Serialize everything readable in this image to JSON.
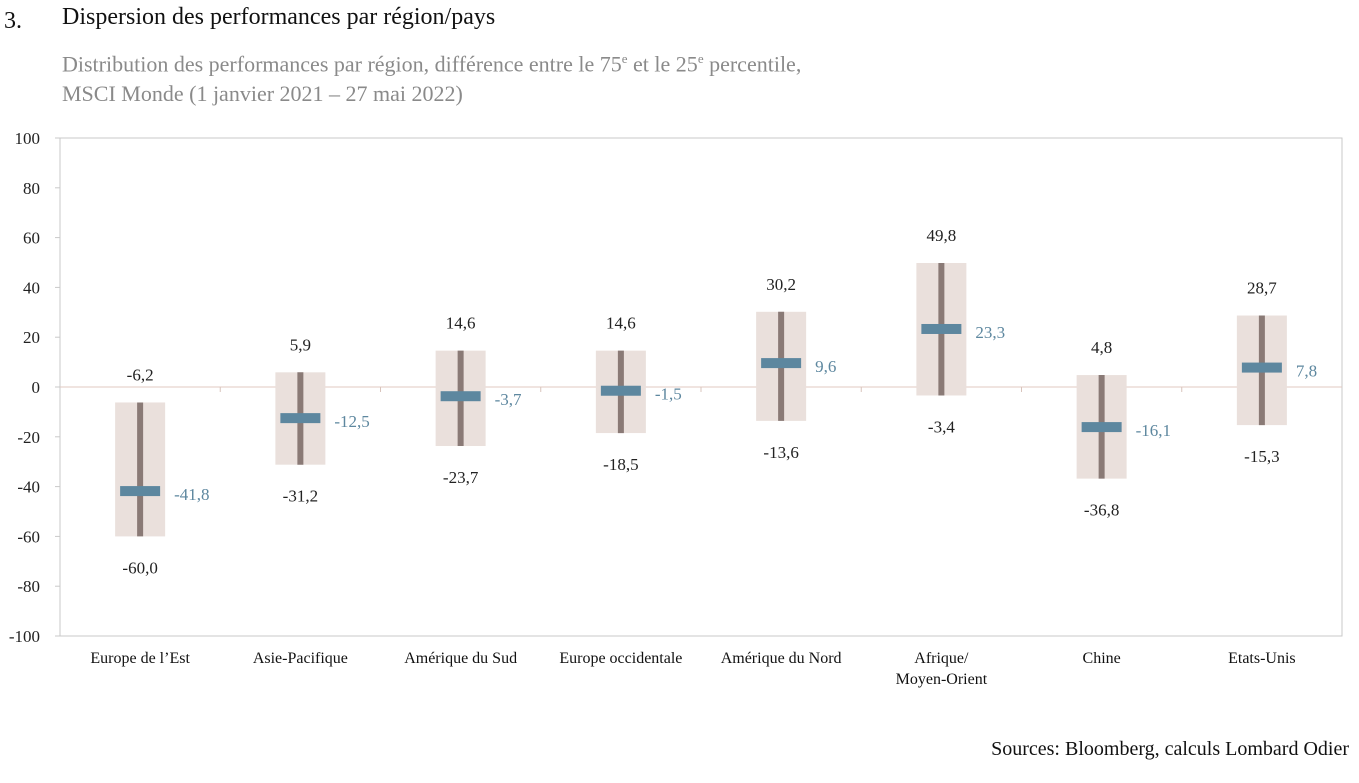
{
  "figure": {
    "number": "3.",
    "title": "Dispersion des performances par région/pays",
    "subtitle": {
      "part1": "Distribution des performances par région, différence entre le 75",
      "sup1": "e",
      "part2": " et le 25",
      "sup2": "e",
      "part3": " percentile,",
      "line2": "MSCI Monde (1 janvier 2021 – 27 mai 2022)"
    },
    "source": "Sources: Bloomberg, calculs Lombard Odier"
  },
  "chart_data": {
    "type": "box",
    "ylim": [
      -100,
      100
    ],
    "yticks": [
      100,
      80,
      60,
      40,
      20,
      0,
      -20,
      -40,
      -60,
      -80,
      -100
    ],
    "ytick_labels": [
      "100",
      "80",
      "60",
      "40",
      "20",
      "0",
      "-20",
      "-40",
      "-60",
      "-80",
      "-100"
    ],
    "grid": false,
    "legend": "none",
    "colors": {
      "box": "#eae0dc",
      "whisker": "#8a7a76",
      "median": "#5d879f",
      "label": "#222222",
      "median_label": "#5d879f",
      "frame": "#c9c9c9"
    },
    "categories": [
      {
        "name": "Europe de l’Est",
        "lines": [
          "Europe de l’Est"
        ],
        "top": -6.2,
        "bottom": -60.0,
        "median": -41.8,
        "top_label": "-6,2",
        "bottom_label": "-60,0",
        "median_label": "-41,8"
      },
      {
        "name": "Asie-Pacifique",
        "lines": [
          "Asie-Pacifique"
        ],
        "top": 5.9,
        "bottom": -31.2,
        "median": -12.5,
        "top_label": "5,9",
        "bottom_label": "-31,2",
        "median_label": "-12,5"
      },
      {
        "name": "Amérique du Sud",
        "lines": [
          "Amérique du Sud"
        ],
        "top": 14.6,
        "bottom": -23.7,
        "median": -3.7,
        "top_label": "14,6",
        "bottom_label": "-23,7",
        "median_label": "-3,7"
      },
      {
        "name": "Europe occidentale",
        "lines": [
          "Europe occidentale"
        ],
        "top": 14.6,
        "bottom": -18.5,
        "median": -1.5,
        "top_label": "14,6",
        "bottom_label": "-18,5",
        "median_label": "-1,5"
      },
      {
        "name": "Amérique du Nord",
        "lines": [
          "Amérique du Nord"
        ],
        "top": 30.2,
        "bottom": -13.6,
        "median": 9.6,
        "top_label": "30,2",
        "bottom_label": "-13,6",
        "median_label": "9,6"
      },
      {
        "name": "Afrique/ Moyen-Orient",
        "lines": [
          "Afrique/",
          "Moyen-Orient"
        ],
        "top": 49.8,
        "bottom": -3.4,
        "median": 23.3,
        "top_label": "49,8",
        "bottom_label": "-3,4",
        "median_label": "23,3"
      },
      {
        "name": "Chine",
        "lines": [
          "Chine"
        ],
        "top": 4.8,
        "bottom": -36.8,
        "median": -16.1,
        "top_label": "4,8",
        "bottom_label": "-36,8",
        "median_label": "-16,1"
      },
      {
        "name": "Etats-Unis",
        "lines": [
          "Etats-Unis"
        ],
        "top": 28.7,
        "bottom": -15.3,
        "median": 7.8,
        "top_label": "28,7",
        "bottom_label": "-15,3",
        "median_label": "7,8"
      }
    ]
  }
}
